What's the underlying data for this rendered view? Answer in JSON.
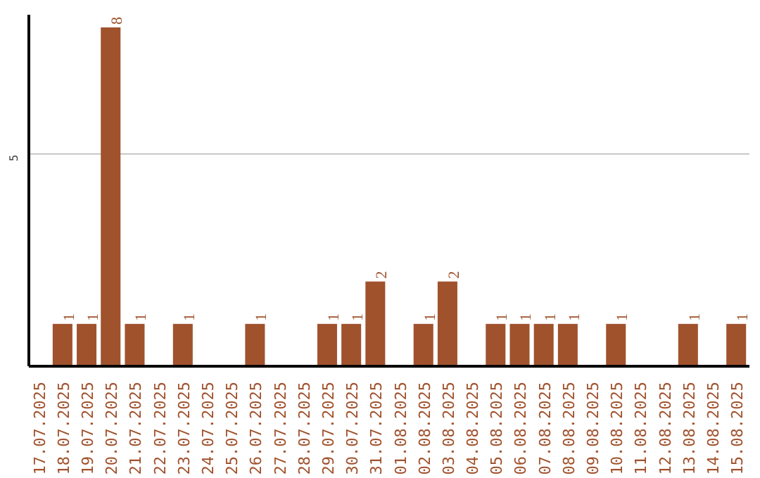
{
  "chart_data": {
    "type": "bar",
    "categories": [
      "17.07.2025",
      "18.07.2025",
      "19.07.2025",
      "20.07.2025",
      "21.07.2025",
      "22.07.2025",
      "23.07.2025",
      "24.07.2025",
      "25.07.2025",
      "26.07.2025",
      "27.07.2025",
      "28.07.2025",
      "29.07.2025",
      "30.07.2025",
      "31.07.2025",
      "01.08.2025",
      "02.08.2025",
      "03.08.2025",
      "04.08.2025",
      "05.08.2025",
      "06.08.2025",
      "07.08.2025",
      "08.08.2025",
      "09.08.2025",
      "10.08.2025",
      "11.08.2025",
      "12.08.2025",
      "13.08.2025",
      "14.08.2025",
      "15.08.2025"
    ],
    "values": [
      0,
      1,
      1,
      8,
      1,
      0,
      1,
      0,
      0,
      1,
      0,
      0,
      1,
      1,
      2,
      0,
      1,
      2,
      0,
      1,
      1,
      1,
      1,
      0,
      1,
      0,
      0,
      1,
      0,
      1
    ],
    "value_labels": [
      null,
      "1",
      "1",
      "8",
      "1",
      null,
      "1",
      null,
      null,
      "1",
      null,
      null,
      "1",
      "1",
      "2",
      null,
      "1",
      "2",
      null,
      "1",
      "1",
      "1",
      "1",
      null,
      "1",
      null,
      null,
      "1",
      null,
      "1"
    ],
    "color": "#a0522d",
    "ylim": [
      0,
      8.3
    ],
    "yticks": [
      5
    ],
    "grid": "y"
  }
}
